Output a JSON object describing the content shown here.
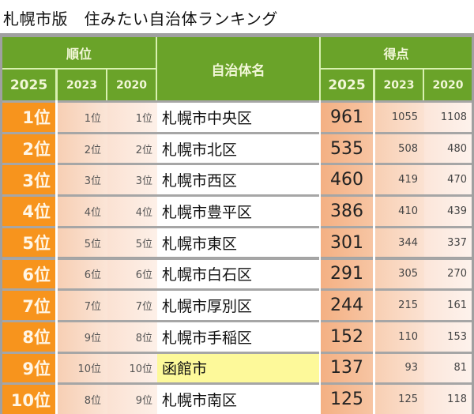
{
  "title": "札幌市版　住みたい自治体ランキング",
  "header": {
    "rank_group": "順位",
    "name_col": "自治体名",
    "score_group": "得点",
    "years": [
      "2025",
      "2023",
      "2020"
    ]
  },
  "colors": {
    "header_green": "#6aa329",
    "rank_orange": "#f7941d",
    "score_peach": "#f4b083",
    "highlight_yellow": "#fdf99a"
  },
  "rows": [
    {
      "rank_2025": "1位",
      "rank_2023": "1位",
      "rank_2020": "1位",
      "name": "札幌市中央区",
      "score_2025": "961",
      "score_2023": "1055",
      "score_2020": "1108",
      "highlight": false
    },
    {
      "rank_2025": "2位",
      "rank_2023": "2位",
      "rank_2020": "2位",
      "name": "札幌市北区",
      "score_2025": "535",
      "score_2023": "508",
      "score_2020": "480",
      "highlight": false
    },
    {
      "rank_2025": "3位",
      "rank_2023": "3位",
      "rank_2020": "3位",
      "name": "札幌市西区",
      "score_2025": "460",
      "score_2023": "419",
      "score_2020": "470",
      "highlight": false
    },
    {
      "rank_2025": "4位",
      "rank_2023": "4位",
      "rank_2020": "4位",
      "name": "札幌市豊平区",
      "score_2025": "386",
      "score_2023": "410",
      "score_2020": "439",
      "highlight": false
    },
    {
      "rank_2025": "5位",
      "rank_2023": "5位",
      "rank_2020": "5位",
      "name": "札幌市東区",
      "score_2025": "301",
      "score_2023": "344",
      "score_2020": "337",
      "highlight": false
    },
    {
      "rank_2025": "6位",
      "rank_2023": "6位",
      "rank_2020": "6位",
      "name": "札幌市白石区",
      "score_2025": "291",
      "score_2023": "305",
      "score_2020": "270",
      "highlight": false
    },
    {
      "rank_2025": "7位",
      "rank_2023": "7位",
      "rank_2020": "7位",
      "name": "札幌市厚別区",
      "score_2025": "244",
      "score_2023": "215",
      "score_2020": "161",
      "highlight": false
    },
    {
      "rank_2025": "8位",
      "rank_2023": "9位",
      "rank_2020": "8位",
      "name": "札幌市手稲区",
      "score_2025": "152",
      "score_2023": "110",
      "score_2020": "153",
      "highlight": false
    },
    {
      "rank_2025": "9位",
      "rank_2023": "10位",
      "rank_2020": "10位",
      "name": "函館市",
      "score_2025": "137",
      "score_2023": "93",
      "score_2020": "81",
      "highlight": true
    },
    {
      "rank_2025": "10位",
      "rank_2023": "8位",
      "rank_2020": "9位",
      "name": "札幌市南区",
      "score_2025": "125",
      "score_2023": "125",
      "score_2020": "118",
      "highlight": false
    }
  ]
}
